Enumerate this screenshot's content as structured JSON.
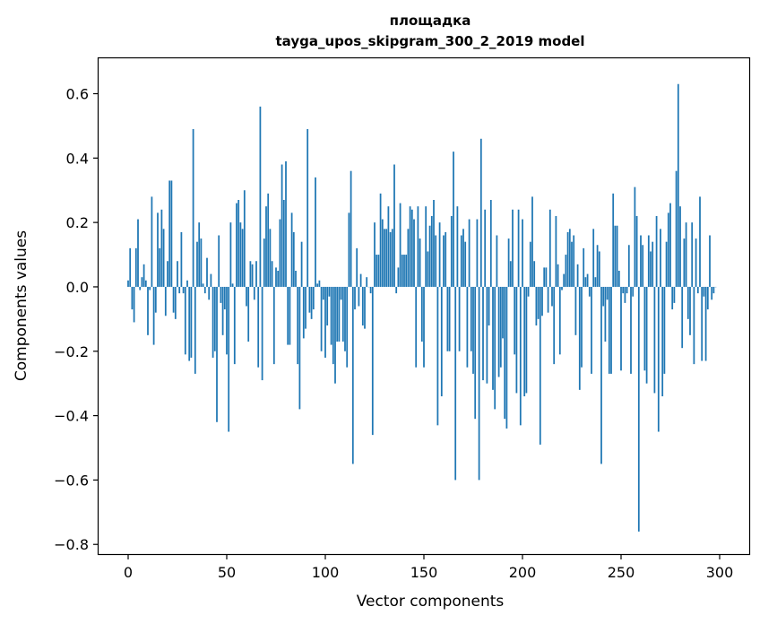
{
  "chart_data": {
    "type": "bar",
    "title": "площадка",
    "subtitle": "tayga_upos_skipgram_300_2_2019 model",
    "xlabel": "Vector components",
    "ylabel": "Components values",
    "xlim": [
      -15,
      315
    ],
    "ylim": [
      -0.83,
      0.71
    ],
    "x_ticks": [
      0,
      50,
      100,
      150,
      200,
      250,
      300
    ],
    "x_tick_labels": [
      "0",
      "50",
      "100",
      "150",
      "200",
      "250",
      "300"
    ],
    "y_ticks": [
      -0.8,
      -0.6,
      -0.4,
      -0.2,
      0.0,
      0.2,
      0.4,
      0.6
    ],
    "y_tick_labels": [
      "−0.8",
      "−0.6",
      "−0.4",
      "−0.2",
      "0.0",
      "0.2",
      "0.4",
      "0.6"
    ],
    "bar_color": "#1f77b4",
    "values": [
      0.02,
      0.12,
      -0.07,
      -0.11,
      0.12,
      0.21,
      -0.01,
      0.03,
      0.07,
      0.02,
      -0.15,
      -0.01,
      0.28,
      -0.18,
      -0.08,
      0.23,
      0.12,
      0.24,
      0.18,
      -0.09,
      0.08,
      0.33,
      0.33,
      -0.08,
      -0.1,
      0.08,
      -0.02,
      0.17,
      -0.02,
      -0.21,
      0.02,
      -0.23,
      -0.22,
      0.49,
      -0.27,
      0.14,
      0.2,
      0.15,
      0.01,
      -0.02,
      0.09,
      -0.04,
      0.04,
      -0.22,
      -0.2,
      -0.42,
      0.16,
      -0.05,
      -0.15,
      -0.07,
      -0.21,
      -0.45,
      0.2,
      0.01,
      -0.24,
      0.26,
      0.27,
      0.2,
      0.18,
      0.3,
      -0.06,
      -0.17,
      0.08,
      0.07,
      -0.04,
      0.08,
      -0.25,
      0.56,
      -0.29,
      0.15,
      0.25,
      0.29,
      0.18,
      0.08,
      -0.24,
      0.06,
      0.05,
      0.21,
      0.38,
      0.27,
      0.39,
      -0.18,
      -0.18,
      0.23,
      0.17,
      0.05,
      -0.24,
      -0.38,
      0.14,
      -0.16,
      -0.13,
      0.49,
      -0.08,
      -0.1,
      -0.07,
      0.34,
      0.01,
      0.02,
      -0.2,
      -0.04,
      -0.22,
      -0.12,
      -0.03,
      -0.18,
      -0.24,
      -0.3,
      -0.17,
      -0.17,
      -0.04,
      -0.17,
      -0.2,
      -0.25,
      0.23,
      0.36,
      -0.55,
      -0.07,
      0.12,
      -0.06,
      0.04,
      -0.12,
      -0.13,
      0.03,
      0.0,
      -0.02,
      -0.46,
      0.2,
      0.1,
      0.1,
      0.29,
      0.21,
      0.18,
      0.18,
      0.25,
      0.17,
      0.18,
      0.38,
      -0.02,
      0.06,
      0.26,
      0.1,
      0.1,
      0.1,
      0.18,
      0.25,
      0.24,
      0.21,
      -0.25,
      0.25,
      0.15,
      -0.17,
      -0.25,
      0.25,
      0.11,
      0.19,
      0.22,
      0.27,
      0.16,
      -0.43,
      0.2,
      -0.34,
      0.16,
      0.17,
      -0.2,
      -0.2,
      0.22,
      0.42,
      -0.6,
      0.25,
      -0.2,
      0.16,
      0.18,
      0.14,
      -0.25,
      0.21,
      -0.2,
      -0.27,
      -0.41,
      0.21,
      -0.6,
      0.46,
      -0.29,
      0.24,
      -0.3,
      -0.12,
      0.27,
      -0.32,
      -0.38,
      0.16,
      -0.28,
      -0.25,
      -0.16,
      -0.41,
      -0.44,
      0.15,
      0.08,
      0.24,
      -0.21,
      -0.33,
      0.24,
      -0.43,
      0.21,
      -0.34,
      -0.33,
      -0.03,
      0.14,
      0.28,
      0.08,
      -0.12,
      -0.1,
      -0.49,
      -0.09,
      0.06,
      0.06,
      -0.08,
      0.24,
      -0.06,
      -0.24,
      0.22,
      0.07,
      -0.21,
      -0.01,
      0.04,
      0.1,
      0.17,
      0.18,
      0.14,
      0.16,
      -0.15,
      0.07,
      -0.32,
      -0.25,
      0.12,
      0.03,
      0.04,
      -0.03,
      -0.27,
      0.18,
      0.03,
      0.13,
      0.11,
      -0.55,
      -0.06,
      -0.17,
      -0.04,
      -0.27,
      -0.27,
      0.29,
      0.19,
      0.19,
      0.05,
      -0.26,
      -0.02,
      -0.05,
      -0.02,
      0.13,
      -0.27,
      -0.03,
      0.31,
      0.22,
      -0.76,
      0.16,
      0.13,
      -0.26,
      -0.3,
      0.16,
      0.11,
      0.14,
      -0.33,
      0.22,
      -0.45,
      0.18,
      -0.34,
      -0.27,
      0.14,
      0.23,
      0.26,
      -0.07,
      -0.05,
      0.36,
      0.63,
      0.25,
      -0.19,
      0.15,
      0.2,
      -0.1,
      -0.15,
      0.2,
      -0.24,
      0.15,
      -0.02,
      0.28,
      -0.23,
      -0.03,
      -0.23,
      -0.07,
      0.16,
      -0.04,
      -0.02,
      0.0
    ]
  }
}
